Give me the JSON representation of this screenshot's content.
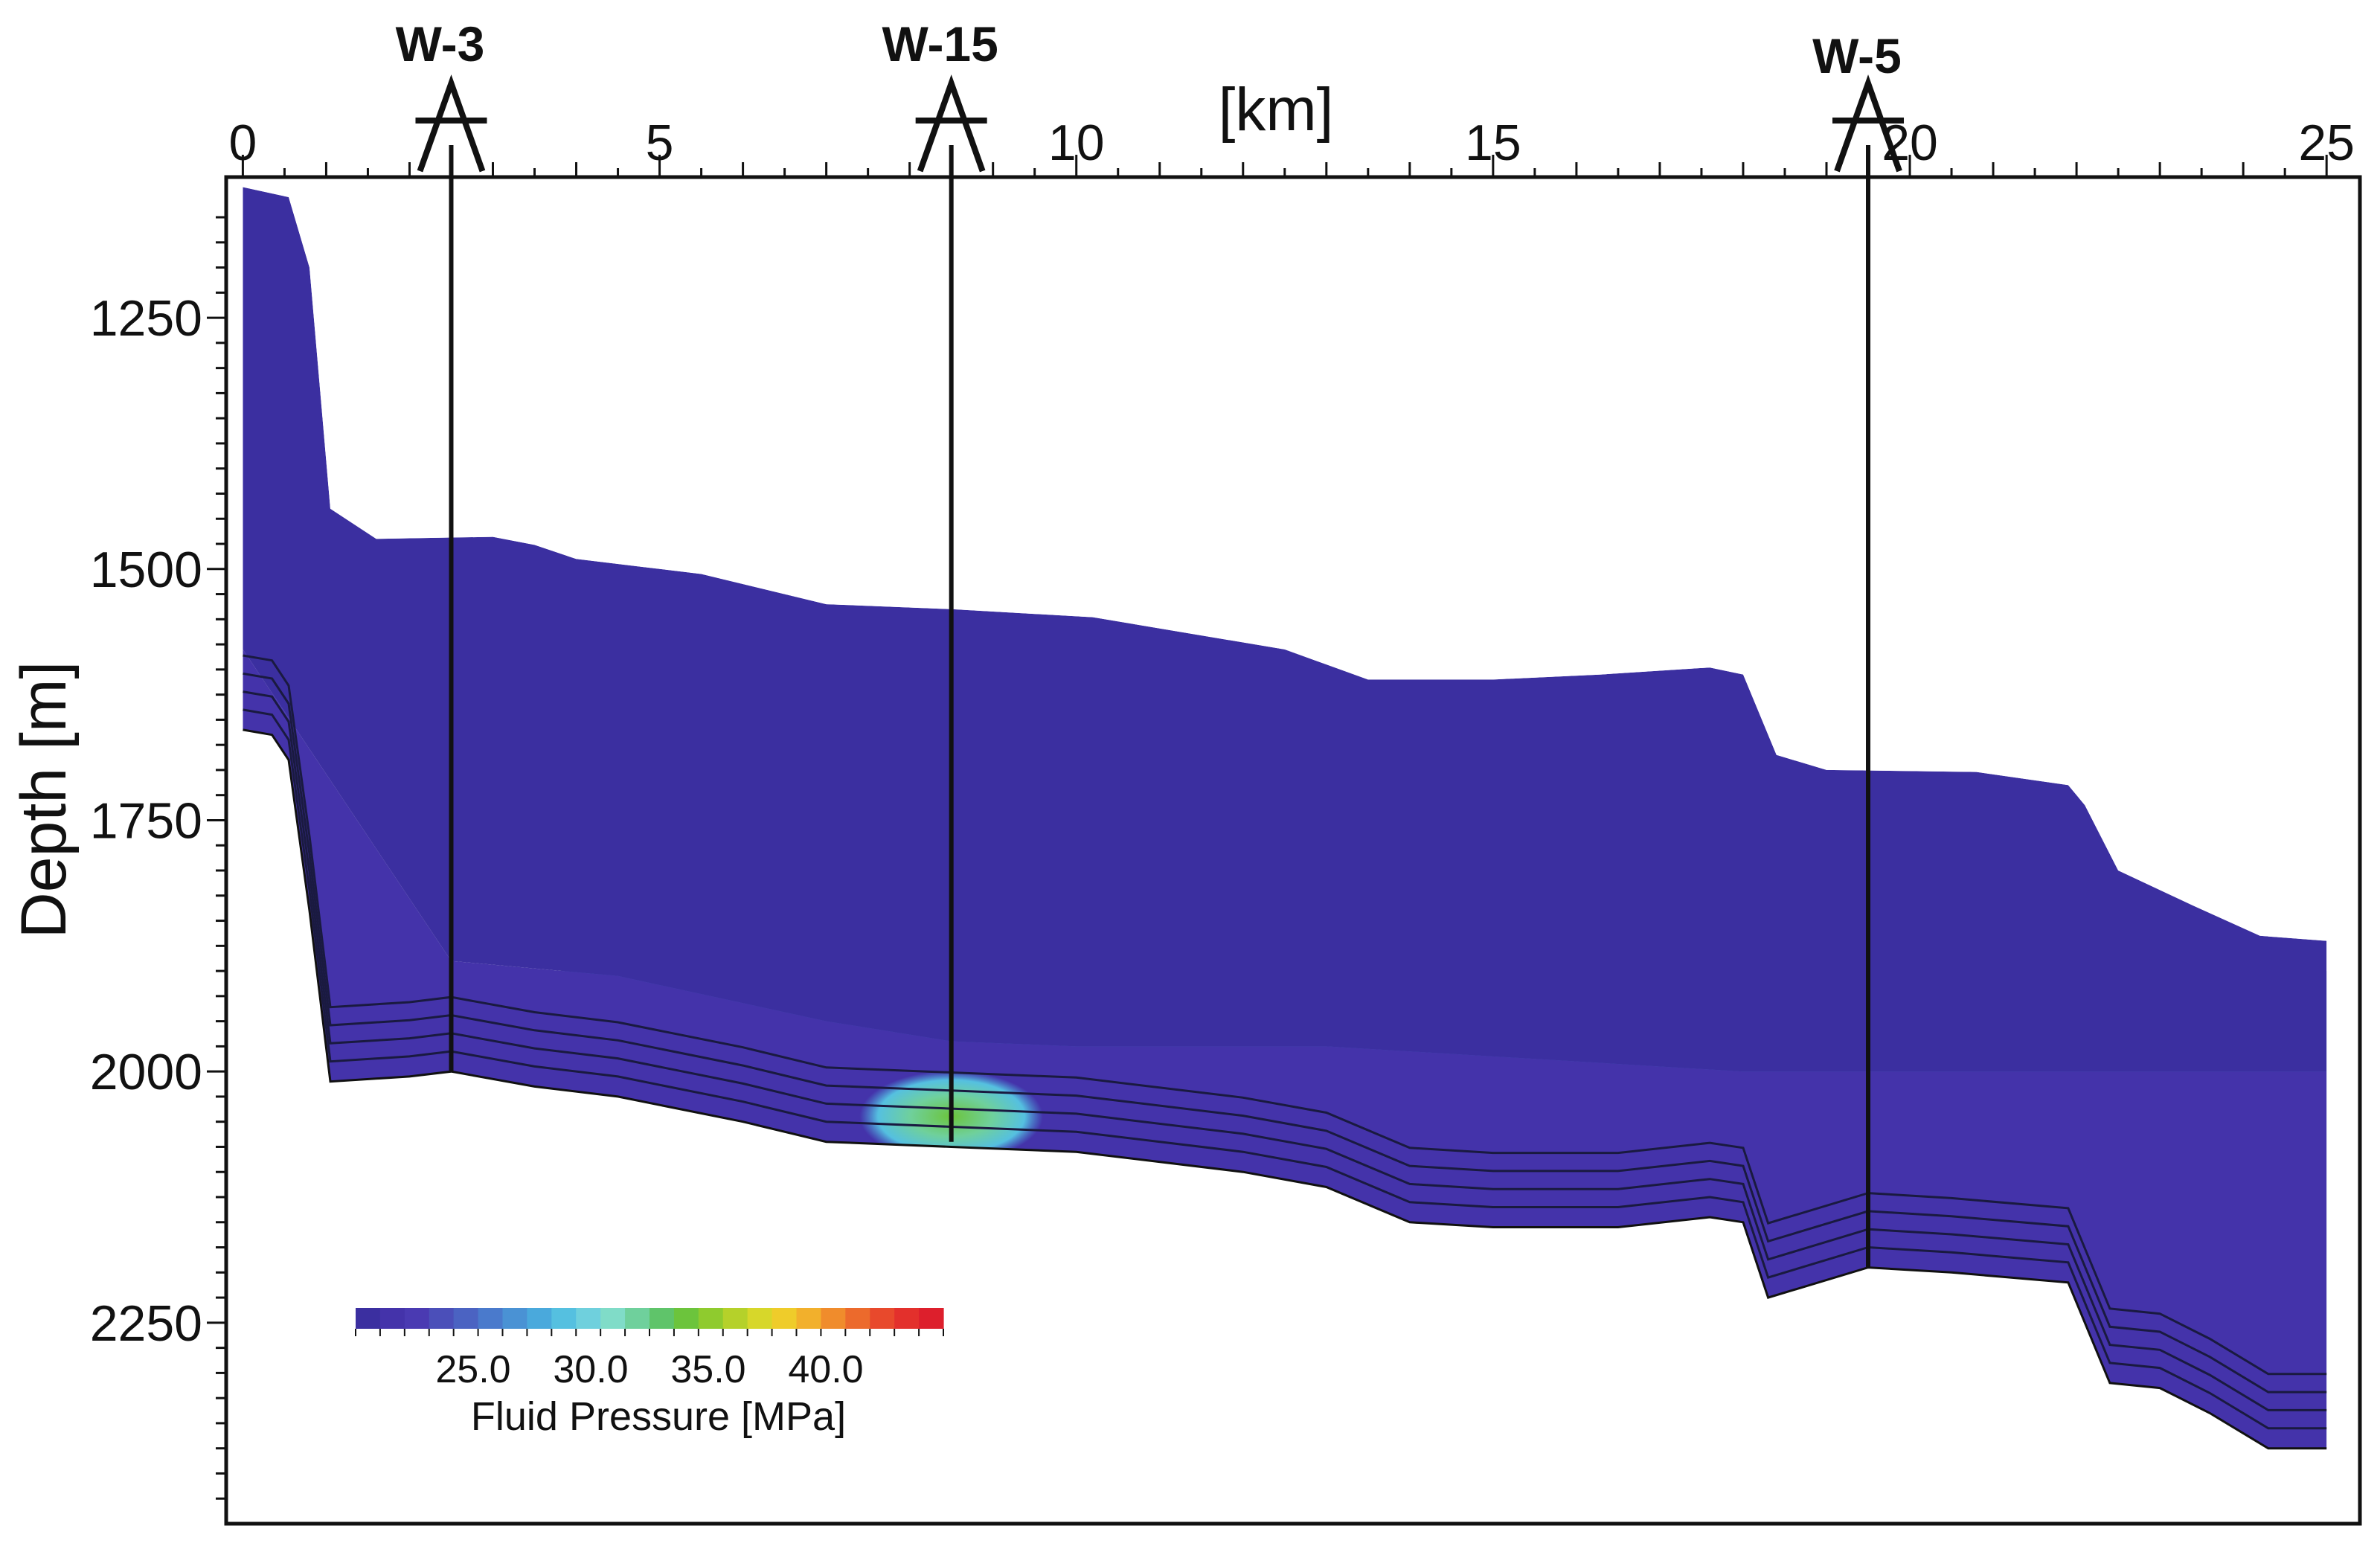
{
  "chart_data": {
    "type": "heatmap",
    "title": "",
    "xlabel": "[km]",
    "ylabel": "Depth [m]",
    "xlim": [
      -0.2,
      25.4
    ],
    "ylim": [
      2450,
      1110
    ],
    "x_ticks": [
      0,
      5,
      10,
      15,
      20,
      25
    ],
    "y_ticks": [
      1250,
      1500,
      1750,
      2000,
      2250
    ],
    "x_tick_labels": [
      "0",
      "5",
      "10",
      "15",
      "20",
      "25"
    ],
    "y_tick_labels": [
      "1250",
      "1500",
      "1750",
      "2000",
      "2250"
    ],
    "colorbar": {
      "label": "Fluid Pressure [MPa]",
      "range": [
        20.0,
        45.0
      ],
      "ticks": [
        25.0,
        30.0,
        35.0,
        40.0
      ],
      "tick_labels": [
        "25.0",
        "30.0",
        "35.0",
        "40.0"
      ],
      "colors": [
        "#3b2fa0",
        "#4433aa",
        "#4a3ab2",
        "#4b4fb9",
        "#4b63c2",
        "#4a7acc",
        "#4a92d4",
        "#4aa9dc",
        "#55c0e0",
        "#6fd0dd",
        "#80dcc8",
        "#6fd09c",
        "#5fc46a",
        "#6cc43c",
        "#8fcb2e",
        "#b5d12a",
        "#d7d72a",
        "#efcc2a",
        "#f2b02c",
        "#f08c2c",
        "#ec6a2c",
        "#e8492c",
        "#e3302c",
        "#dd1f2c"
      ]
    },
    "wells": [
      {
        "name": "W-3",
        "x": 2.5,
        "bottom_depth": 2000
      },
      {
        "name": "W-15",
        "x": 8.5,
        "bottom_depth": 2070
      },
      {
        "name": "W-5",
        "x": 19.5,
        "bottom_depth": 2195
      }
    ],
    "section": {
      "top_surface": [
        [
          0,
          1120
        ],
        [
          0.55,
          1130
        ],
        [
          0.8,
          1200
        ],
        [
          1.05,
          1440
        ],
        [
          1.6,
          1470
        ],
        [
          3.0,
          1468
        ],
        [
          3.5,
          1476
        ],
        [
          4.0,
          1490
        ],
        [
          5.5,
          1505
        ],
        [
          7.0,
          1535
        ],
        [
          8.5,
          1540
        ],
        [
          10.2,
          1548
        ],
        [
          12.5,
          1580
        ],
        [
          13.5,
          1610
        ],
        [
          15.0,
          1610
        ],
        [
          16.3,
          1605
        ],
        [
          17.6,
          1598
        ],
        [
          18.0,
          1605
        ],
        [
          18.4,
          1685
        ],
        [
          19.0,
          1700
        ],
        [
          20.8,
          1702
        ],
        [
          21.9,
          1715
        ],
        [
          22.1,
          1735
        ],
        [
          22.5,
          1800
        ],
        [
          23.4,
          1835
        ],
        [
          24.2,
          1865
        ],
        [
          25.0,
          1870
        ]
      ],
      "base_surface": [
        [
          0,
          1660
        ],
        [
          0.35,
          1665
        ],
        [
          0.55,
          1690
        ],
        [
          0.8,
          1840
        ],
        [
          1.05,
          2010
        ],
        [
          2.0,
          2005
        ],
        [
          2.5,
          2000
        ],
        [
          3.5,
          2015
        ],
        [
          4.5,
          2025
        ],
        [
          6.0,
          2050
        ],
        [
          7.0,
          2070
        ],
        [
          8.5,
          2075
        ],
        [
          10.0,
          2080
        ],
        [
          12.0,
          2100
        ],
        [
          13.0,
          2115
        ],
        [
          14.0,
          2150
        ],
        [
          15.0,
          2155
        ],
        [
          16.5,
          2155
        ],
        [
          17.6,
          2145
        ],
        [
          18.0,
          2150
        ],
        [
          18.3,
          2225
        ],
        [
          19.5,
          2195
        ],
        [
          20.5,
          2200
        ],
        [
          21.9,
          2210
        ],
        [
          22.4,
          2310
        ],
        [
          23.0,
          2315
        ],
        [
          23.6,
          2340
        ],
        [
          24.3,
          2375
        ],
        [
          25.0,
          2375
        ]
      ],
      "mid_layer_top": [
        [
          0,
          1580
        ],
        [
          2.5,
          1890
        ],
        [
          4.5,
          1905
        ],
        [
          7.0,
          1950
        ],
        [
          8.5,
          1970
        ],
        [
          10.0,
          1975
        ],
        [
          13.0,
          1975
        ],
        [
          18.0,
          2000
        ],
        [
          25.0,
          2000
        ]
      ],
      "mid_pressure": 21.5,
      "deep_pressure": 24.5,
      "anomaly": {
        "x_center": 8.5,
        "depth_top": 2020,
        "depth_bottom": 2075,
        "pressure": 32.0
      }
    }
  }
}
